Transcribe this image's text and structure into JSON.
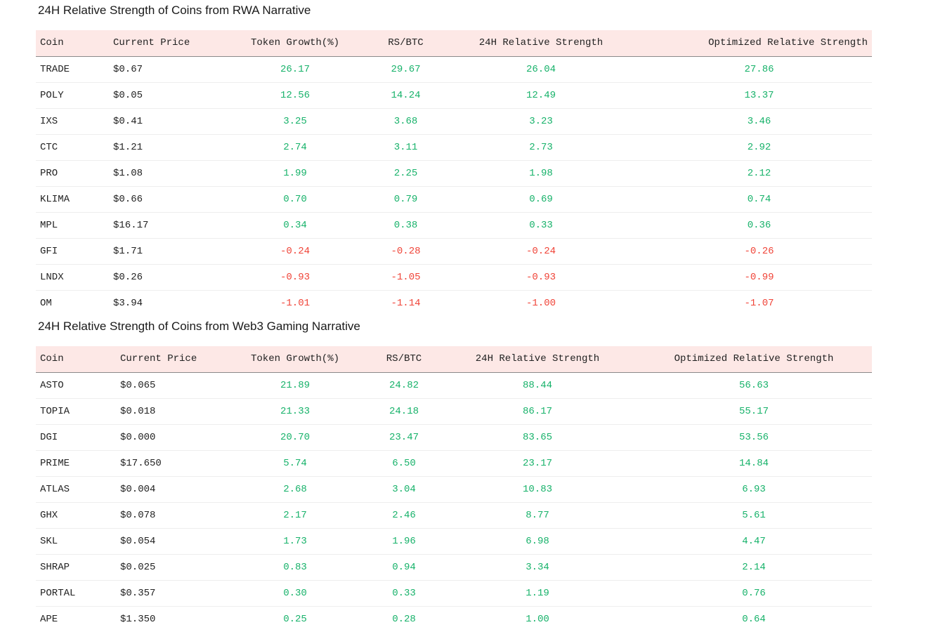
{
  "colors": {
    "header_bg": "#fde8e6",
    "positive": "#17b26a",
    "negative": "#f04438"
  },
  "rwa": {
    "title": "24H Relative Strength of Coins from RWA Narrative",
    "columns": [
      "Coin",
      "Current Price",
      "Token Growth(%)",
      "RS/BTC",
      "24H Relative Strength",
      "Optimized Relative Strength"
    ],
    "rows": [
      {
        "coin": "TRADE",
        "price": "$0.67",
        "growth": "26.17",
        "rs_btc": "29.67",
        "rs_24h": "26.04",
        "opt": "27.86"
      },
      {
        "coin": "POLY",
        "price": "$0.05",
        "growth": "12.56",
        "rs_btc": "14.24",
        "rs_24h": "12.49",
        "opt": "13.37"
      },
      {
        "coin": "IXS",
        "price": "$0.41",
        "growth": "3.25",
        "rs_btc": "3.68",
        "rs_24h": "3.23",
        "opt": "3.46"
      },
      {
        "coin": "CTC",
        "price": "$1.21",
        "growth": "2.74",
        "rs_btc": "3.11",
        "rs_24h": "2.73",
        "opt": "2.92"
      },
      {
        "coin": "PRO",
        "price": "$1.08",
        "growth": "1.99",
        "rs_btc": "2.25",
        "rs_24h": "1.98",
        "opt": "2.12"
      },
      {
        "coin": "KLIMA",
        "price": "$0.66",
        "growth": "0.70",
        "rs_btc": "0.79",
        "rs_24h": "0.69",
        "opt": "0.74"
      },
      {
        "coin": "MPL",
        "price": "$16.17",
        "growth": "0.34",
        "rs_btc": "0.38",
        "rs_24h": "0.33",
        "opt": "0.36"
      },
      {
        "coin": "GFI",
        "price": "$1.71",
        "growth": "-0.24",
        "rs_btc": "-0.28",
        "rs_24h": "-0.24",
        "opt": "-0.26"
      },
      {
        "coin": "LNDX",
        "price": "$0.26",
        "growth": "-0.93",
        "rs_btc": "-1.05",
        "rs_24h": "-0.93",
        "opt": "-0.99"
      },
      {
        "coin": "OM",
        "price": "$3.94",
        "growth": "-1.01",
        "rs_btc": "-1.14",
        "rs_24h": "-1.00",
        "opt": "-1.07"
      }
    ]
  },
  "gaming": {
    "title": "24H Relative Strength of Coins from Web3 Gaming Narrative",
    "columns": [
      "Coin",
      "Current Price",
      "Token Growth(%)",
      "RS/BTC",
      "24H Relative Strength",
      "Optimized Relative Strength"
    ],
    "rows": [
      {
        "coin": "ASTO",
        "price": "$0.065",
        "growth": "21.89",
        "rs_btc": "24.82",
        "rs_24h": "88.44",
        "opt": "56.63"
      },
      {
        "coin": "TOPIA",
        "price": "$0.018",
        "growth": "21.33",
        "rs_btc": "24.18",
        "rs_24h": "86.17",
        "opt": "55.17"
      },
      {
        "coin": "DGI",
        "price": "$0.000",
        "growth": "20.70",
        "rs_btc": "23.47",
        "rs_24h": "83.65",
        "opt": "53.56"
      },
      {
        "coin": "PRIME",
        "price": "$17.650",
        "growth": "5.74",
        "rs_btc": "6.50",
        "rs_24h": "23.17",
        "opt": "14.84"
      },
      {
        "coin": "ATLAS",
        "price": "$0.004",
        "growth": "2.68",
        "rs_btc": "3.04",
        "rs_24h": "10.83",
        "opt": "6.93"
      },
      {
        "coin": "GHX",
        "price": "$0.078",
        "growth": "2.17",
        "rs_btc": "2.46",
        "rs_24h": "8.77",
        "opt": "5.61"
      },
      {
        "coin": "SKL",
        "price": "$0.054",
        "growth": "1.73",
        "rs_btc": "1.96",
        "rs_24h": "6.98",
        "opt": "4.47"
      },
      {
        "coin": "SHRAP",
        "price": "$0.025",
        "growth": "0.83",
        "rs_btc": "0.94",
        "rs_24h": "3.34",
        "opt": "2.14"
      },
      {
        "coin": "PORTAL",
        "price": "$0.357",
        "growth": "0.30",
        "rs_btc": "0.33",
        "rs_24h": "1.19",
        "opt": "0.76"
      },
      {
        "coin": "APE",
        "price": "$1.350",
        "growth": "0.25",
        "rs_btc": "0.28",
        "rs_24h": "1.00",
        "opt": "0.64"
      }
    ]
  }
}
